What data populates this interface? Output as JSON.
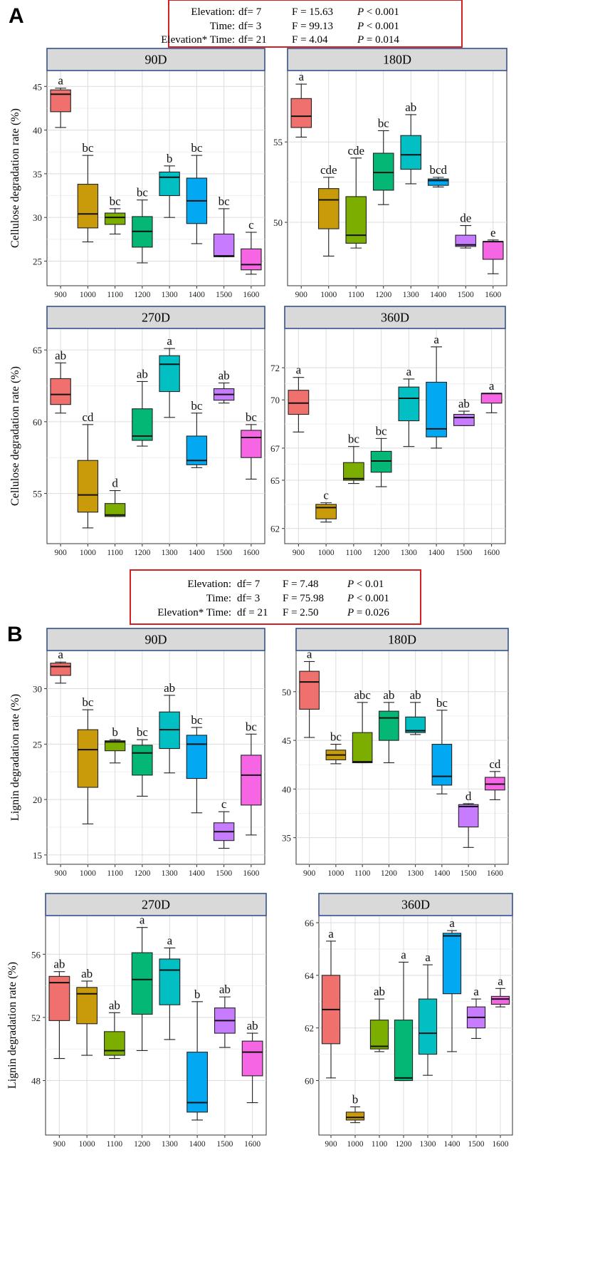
{
  "figure": {
    "x_categories": [
      "900",
      "1000",
      "1100",
      "1200",
      "1300",
      "1400",
      "1500",
      "1600"
    ],
    "colors": [
      "#f0706e",
      "#c99a09",
      "#7cae00",
      "#05b775",
      "#02bfc4",
      "#02a9f2",
      "#c77cff",
      "#f665e3"
    ]
  },
  "sections": [
    {
      "letter": "A",
      "stats": [
        {
          "term": "Elevation:",
          "df": "df= 7",
          "F": "F = 15.63",
          "P": "P",
          "pval": "< 0.001"
        },
        {
          "term": "Time:",
          "df": "df= 3",
          "F": "F = 99.13",
          "P": "P",
          "pval": "< 0.001"
        },
        {
          "term": "Elevation* Time:",
          "df": "df= 21",
          "F": "F = 4.04",
          "P": "P",
          "pval": "= 0.014"
        }
      ],
      "ylabel": "Cellulose degradation rate (%)"
    },
    {
      "letter": "B",
      "stats": [
        {
          "term": "Elevation:",
          "df": "df= 7",
          "F": "F = 7.48",
          "P": "P",
          "pval": "< 0.01"
        },
        {
          "term": "Time:",
          "df": "df= 3",
          "F": "F = 75.98",
          "P": "P",
          "pval": "< 0.001"
        },
        {
          "term": "Elevation* Time:",
          "df": "df = 21",
          "F": "F = 2.50",
          "P": "P",
          "pval": "= 0.026"
        }
      ],
      "ylabel": "Lignin degradation rate (%)"
    }
  ],
  "chart_data": [
    {
      "type": "box",
      "section": "A",
      "title": "90D",
      "ylabel": "Cellulose degradation rate (%)",
      "categories": [
        "900",
        "1000",
        "1100",
        "1200",
        "1300",
        "1400",
        "1500",
        "1600"
      ],
      "ylim": [
        23,
        46
      ],
      "yticks": [
        25,
        30,
        35,
        40,
        45
      ],
      "boxes": [
        {
          "min": 40.3,
          "q1": 42.1,
          "median": 44.1,
          "q3": 44.6,
          "max": 44.8,
          "letter": "a"
        },
        {
          "min": 27.2,
          "q1": 28.8,
          "median": 30.4,
          "q3": 33.8,
          "max": 37.1,
          "letter": "bc"
        },
        {
          "min": 28.1,
          "q1": 29.2,
          "median": 30.0,
          "q3": 30.5,
          "max": 31.0,
          "letter": "bc"
        },
        {
          "min": 24.8,
          "q1": 26.6,
          "median": 28.4,
          "q3": 30.1,
          "max": 32.0,
          "letter": "bc"
        },
        {
          "min": 30.0,
          "q1": 32.5,
          "median": 34.6,
          "q3": 35.2,
          "max": 35.9,
          "letter": "b"
        },
        {
          "min": 27.0,
          "q1": 29.3,
          "median": 31.9,
          "q3": 34.5,
          "max": 37.1,
          "letter": "bc"
        },
        {
          "min": 25.5,
          "q1": 25.5,
          "median": 25.6,
          "q3": 28.1,
          "max": 31.0,
          "letter": "bc"
        },
        {
          "min": 23.5,
          "q1": 24.0,
          "median": 24.6,
          "q3": 26.4,
          "max": 28.3,
          "letter": "c"
        }
      ]
    },
    {
      "type": "box",
      "section": "A",
      "title": "180D",
      "ylabel": "",
      "categories": [
        "900",
        "1000",
        "1100",
        "1200",
        "1300",
        "1400",
        "1500",
        "1600"
      ],
      "ylim": [
        46.5,
        59.0
      ],
      "yticks": [
        50,
        55
      ],
      "boxes": [
        {
          "min": 55.3,
          "q1": 55.9,
          "median": 56.6,
          "q3": 57.7,
          "max": 58.6,
          "letter": "a"
        },
        {
          "min": 47.9,
          "q1": 49.6,
          "median": 51.4,
          "q3": 52.1,
          "max": 52.8,
          "letter": "cde"
        },
        {
          "min": 48.4,
          "q1": 48.7,
          "median": 49.2,
          "q3": 51.6,
          "max": 54.0,
          "letter": "cde"
        },
        {
          "min": 51.1,
          "q1": 52.0,
          "median": 53.1,
          "q3": 54.3,
          "max": 55.7,
          "letter": "bc"
        },
        {
          "min": 52.4,
          "q1": 53.3,
          "median": 54.2,
          "q3": 55.4,
          "max": 56.7,
          "letter": "ab"
        },
        {
          "min": 52.2,
          "q1": 52.3,
          "median": 52.6,
          "q3": 52.7,
          "max": 52.8,
          "letter": "bcd"
        },
        {
          "min": 48.4,
          "q1": 48.5,
          "median": 48.6,
          "q3": 49.2,
          "max": 49.8,
          "letter": "de"
        },
        {
          "min": 46.8,
          "q1": 47.7,
          "median": 48.8,
          "q3": 48.8,
          "max": 48.9,
          "letter": "e"
        }
      ]
    },
    {
      "type": "box",
      "section": "A",
      "title": "270D",
      "ylabel": "Cellulose degradation rate (%)",
      "categories": [
        "900",
        "1000",
        "1100",
        "1200",
        "1300",
        "1400",
        "1500",
        "1600"
      ],
      "ylim": [
        52,
        66
      ],
      "yticks": [
        55,
        60,
        65
      ],
      "boxes": [
        {
          "min": 60.6,
          "q1": 61.2,
          "median": 61.9,
          "q3": 63.0,
          "max": 64.1,
          "letter": "ab"
        },
        {
          "min": 52.6,
          "q1": 53.7,
          "median": 54.9,
          "q3": 57.3,
          "max": 59.8,
          "letter": "cd"
        },
        {
          "min": 53.4,
          "q1": 53.4,
          "median": 53.5,
          "q3": 54.3,
          "max": 55.2,
          "letter": "d"
        },
        {
          "min": 58.3,
          "q1": 58.7,
          "median": 59.0,
          "q3": 60.9,
          "max": 62.8,
          "letter": "ab"
        },
        {
          "min": 60.3,
          "q1": 62.1,
          "median": 64.0,
          "q3": 64.6,
          "max": 65.1,
          "letter": "a"
        },
        {
          "min": 56.8,
          "q1": 57.0,
          "median": 57.3,
          "q3": 59.0,
          "max": 60.6,
          "letter": "bc"
        },
        {
          "min": 61.3,
          "q1": 61.5,
          "median": 61.9,
          "q3": 62.3,
          "max": 62.7,
          "letter": "ab"
        },
        {
          "min": 56.0,
          "q1": 57.5,
          "median": 58.9,
          "q3": 59.4,
          "max": 59.8,
          "letter": "bc"
        }
      ]
    },
    {
      "type": "box",
      "section": "A",
      "title": "360D",
      "ylabel": "",
      "categories": [
        "900",
        "1000",
        "1100",
        "1200",
        "1300",
        "1400",
        "1500",
        "1600"
      ],
      "ylim": [
        61.5,
        74.0
      ],
      "yticks": [
        62,
        65,
        67,
        70,
        72
      ],
      "boxes": [
        {
          "min": 68.0,
          "q1": 69.1,
          "median": 69.8,
          "q3": 70.6,
          "max": 71.4,
          "letter": "a"
        },
        {
          "min": 62.4,
          "q1": 62.6,
          "median": 63.3,
          "q3": 63.5,
          "max": 63.6,
          "letter": "c"
        },
        {
          "min": 64.8,
          "q1": 65.0,
          "median": 65.1,
          "q3": 66.1,
          "max": 67.1,
          "letter": "bc"
        },
        {
          "min": 64.6,
          "q1": 65.5,
          "median": 66.2,
          "q3": 66.8,
          "max": 67.6,
          "letter": "bc"
        },
        {
          "min": 67.1,
          "q1": 68.7,
          "median": 70.1,
          "q3": 70.8,
          "max": 71.3,
          "letter": "a"
        },
        {
          "min": 67.0,
          "q1": 67.7,
          "median": 68.2,
          "q3": 71.1,
          "max": 73.3,
          "letter": "a"
        },
        {
          "min": 68.4,
          "q1": 68.4,
          "median": 68.9,
          "q3": 69.1,
          "max": 69.3,
          "letter": "ab"
        },
        {
          "min": 69.2,
          "q1": 69.8,
          "median": 70.4,
          "q3": 70.4,
          "max": 70.4,
          "letter": "a"
        }
      ]
    },
    {
      "type": "box",
      "section": "B",
      "title": "90D",
      "ylabel": "Lignin degradation rate (%)",
      "categories": [
        "900",
        "1000",
        "1100",
        "1200",
        "1300",
        "1400",
        "1500",
        "1600"
      ],
      "ylim": [
        14.8,
        32.8
      ],
      "yticks": [
        15,
        20,
        25,
        30
      ],
      "boxes": [
        {
          "min": 30.5,
          "q1": 31.2,
          "median": 32.0,
          "q3": 32.3,
          "max": 32.4,
          "letter": "a"
        },
        {
          "min": 17.8,
          "q1": 21.1,
          "median": 24.5,
          "q3": 26.3,
          "max": 28.1,
          "letter": "bc"
        },
        {
          "min": 23.3,
          "q1": 24.4,
          "median": 25.2,
          "q3": 25.3,
          "max": 25.4,
          "letter": "b"
        },
        {
          "min": 20.3,
          "q1": 22.2,
          "median": 24.2,
          "q3": 24.9,
          "max": 25.4,
          "letter": "bc"
        },
        {
          "min": 22.4,
          "q1": 24.6,
          "median": 26.3,
          "q3": 27.9,
          "max": 29.4,
          "letter": "ab"
        },
        {
          "min": 18.8,
          "q1": 21.9,
          "median": 25.0,
          "q3": 25.8,
          "max": 26.5,
          "letter": "bc"
        },
        {
          "min": 15.6,
          "q1": 16.3,
          "median": 17.1,
          "q3": 17.9,
          "max": 18.9,
          "letter": "c"
        },
        {
          "min": 16.8,
          "q1": 19.5,
          "median": 22.2,
          "q3": 24.0,
          "max": 25.9,
          "letter": "bc"
        }
      ]
    },
    {
      "type": "box",
      "section": "B",
      "title": "180D",
      "ylabel": "",
      "categories": [
        "900",
        "1000",
        "1100",
        "1200",
        "1300",
        "1400",
        "1500",
        "1600"
      ],
      "ylim": [
        33,
        53.5
      ],
      "yticks": [
        35,
        40,
        45,
        50
      ],
      "boxes": [
        {
          "min": 45.3,
          "q1": 48.2,
          "median": 51.0,
          "q3": 52.1,
          "max": 53.1,
          "letter": "a"
        },
        {
          "min": 42.6,
          "q1": 43.0,
          "median": 43.5,
          "q3": 44.0,
          "max": 44.6,
          "letter": "bc"
        },
        {
          "min": 42.7,
          "q1": 42.7,
          "median": 42.8,
          "q3": 45.8,
          "max": 48.9,
          "letter": "abc"
        },
        {
          "min": 42.7,
          "q1": 45.0,
          "median": 47.3,
          "q3": 48.0,
          "max": 48.9,
          "letter": "ab"
        },
        {
          "min": 45.6,
          "q1": 45.8,
          "median": 46.0,
          "q3": 47.4,
          "max": 48.9,
          "letter": "ab"
        },
        {
          "min": 39.5,
          "q1": 40.4,
          "median": 41.3,
          "q3": 44.6,
          "max": 48.1,
          "letter": "bc"
        },
        {
          "min": 34.0,
          "q1": 36.1,
          "median": 38.2,
          "q3": 38.4,
          "max": 38.5,
          "letter": "d"
        },
        {
          "min": 38.9,
          "q1": 39.9,
          "median": 40.5,
          "q3": 41.2,
          "max": 41.8,
          "letter": "cd"
        }
      ]
    },
    {
      "type": "box",
      "section": "B",
      "title": "270D",
      "ylabel": "Lignin degradation rate (%)",
      "categories": [
        "900",
        "1000",
        "1100",
        "1200",
        "1300",
        "1400",
        "1500",
        "1600"
      ],
      "ylim": [
        45,
        58
      ],
      "yticks": [
        48,
        52,
        56
      ],
      "boxes": [
        {
          "min": 49.4,
          "q1": 51.8,
          "median": 54.2,
          "q3": 54.6,
          "max": 54.9,
          "letter": "ab"
        },
        {
          "min": 49.6,
          "q1": 51.6,
          "median": 53.5,
          "q3": 53.9,
          "max": 54.3,
          "letter": "ab"
        },
        {
          "min": 49.4,
          "q1": 49.6,
          "median": 49.9,
          "q3": 51.1,
          "max": 52.3,
          "letter": "ab"
        },
        {
          "min": 49.9,
          "q1": 52.2,
          "median": 54.4,
          "q3": 56.1,
          "max": 57.7,
          "letter": "a"
        },
        {
          "min": 50.6,
          "q1": 52.8,
          "median": 55.0,
          "q3": 55.7,
          "max": 56.4,
          "letter": "a"
        },
        {
          "min": 45.5,
          "q1": 46.0,
          "median": 46.6,
          "q3": 49.8,
          "max": 53.0,
          "letter": "b"
        },
        {
          "min": 50.1,
          "q1": 51.0,
          "median": 51.8,
          "q3": 52.6,
          "max": 53.3,
          "letter": "ab"
        },
        {
          "min": 46.6,
          "q1": 48.3,
          "median": 49.8,
          "q3": 50.5,
          "max": 51.0,
          "letter": "ab"
        }
      ]
    },
    {
      "type": "box",
      "section": "B",
      "title": "360D",
      "ylabel": "",
      "categories": [
        "900",
        "1000",
        "1100",
        "1200",
        "1300",
        "1400",
        "1500",
        "1600"
      ],
      "ylim": [
        58.2,
        66
      ],
      "yticks": [
        60,
        62,
        64,
        66
      ],
      "boxes": [
        {
          "min": 60.1,
          "q1": 61.4,
          "median": 62.7,
          "q3": 64.0,
          "max": 65.3,
          "letter": "a"
        },
        {
          "min": 58.4,
          "q1": 58.5,
          "median": 58.6,
          "q3": 58.8,
          "max": 59.0,
          "letter": "b"
        },
        {
          "min": 61.1,
          "q1": 61.2,
          "median": 61.3,
          "q3": 62.3,
          "max": 63.1,
          "letter": "ab"
        },
        {
          "min": 60.0,
          "q1": 60.0,
          "median": 60.1,
          "q3": 62.3,
          "max": 64.5,
          "letter": "a"
        },
        {
          "min": 60.2,
          "q1": 61.0,
          "median": 61.8,
          "q3": 63.1,
          "max": 64.4,
          "letter": "a"
        },
        {
          "min": 61.1,
          "q1": 63.3,
          "median": 65.5,
          "q3": 65.6,
          "max": 65.7,
          "letter": "a"
        },
        {
          "min": 61.6,
          "q1": 62.0,
          "median": 62.4,
          "q3": 62.8,
          "max": 63.1,
          "letter": "a"
        },
        {
          "min": 62.8,
          "q1": 62.9,
          "median": 63.1,
          "q3": 63.2,
          "max": 63.5,
          "letter": "a"
        }
      ]
    }
  ]
}
